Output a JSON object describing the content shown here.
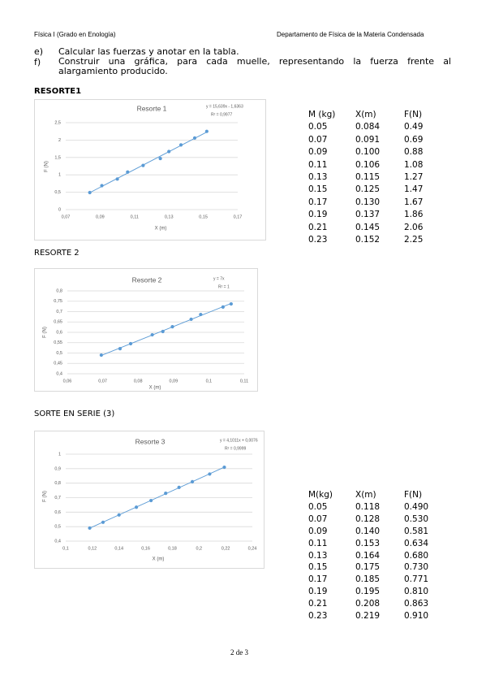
{
  "header": {
    "left": "Física I (Grado en Enología)",
    "right": "Departamento de Física de la Materia Condensada"
  },
  "items": [
    {
      "label": "e)",
      "text": "Calcular las fuerzas y anotar en la tabla."
    },
    {
      "label": "f)",
      "text": "Construir una gráfica, para cada muelle, representando la fuerza frente al alargamiento producido."
    }
  ],
  "sections": [
    "RESORTE1",
    "RESORTE 2",
    "SORTE EN SERIE (3)"
  ],
  "tables": [
    {
      "header": [
        "M (kg)",
        "X(m)",
        "F(N)"
      ],
      "rows": [
        [
          "0.05",
          "0.084",
          "0.49"
        ],
        [
          "0.07",
          "0.091",
          "0.69"
        ],
        [
          "0.09",
          "0.100",
          "0.88"
        ],
        [
          "0.11",
          "0.106",
          "1.08"
        ],
        [
          "0.13",
          "0.115",
          "1.27"
        ],
        [
          "0.15",
          "0.125",
          "1.47"
        ],
        [
          "0.17",
          "0.130",
          "1.67"
        ],
        [
          "0.19",
          "0.137",
          "1.86"
        ],
        [
          "0.21",
          "0.145",
          "2.06"
        ],
        [
          "0.23",
          "0.152",
          "2.25"
        ]
      ]
    },
    {
      "header": [
        "M(kg)",
        "X(m)",
        "F(N)"
      ],
      "rows": [
        [
          "0.05",
          "0.118",
          "0.490"
        ],
        [
          "0.07",
          "0.128",
          "0.530"
        ],
        [
          "0.09",
          "0.140",
          "0.581"
        ],
        [
          "0.11",
          "0.153",
          "0.634"
        ],
        [
          "0.13",
          "0.164",
          "0.680"
        ],
        [
          "0.15",
          "0.175",
          "0.730"
        ],
        [
          "0.17",
          "0.185",
          "0.771"
        ],
        [
          "0.19",
          "0.195",
          "0.810"
        ],
        [
          "0.21",
          "0.208",
          "0.863"
        ],
        [
          "0.23",
          "0.219",
          "0.910"
        ]
      ]
    }
  ],
  "chart_data": [
    {
      "type": "scatter",
      "title": "Resorte 1",
      "equation": "y = 15,639x - 1,6363",
      "r2": "R² = 0,9977",
      "x_label": "X (m)",
      "y_label": "F (N)",
      "trendline": "linear",
      "color": "#5b9bd5",
      "grid": true,
      "x": [
        0.084,
        0.091,
        0.1,
        0.106,
        0.115,
        0.125,
        0.13,
        0.137,
        0.145,
        0.152
      ],
      "values": [
        0.49,
        0.69,
        0.88,
        1.08,
        1.27,
        1.47,
        1.67,
        1.86,
        2.06,
        2.25
      ],
      "xlim": [
        0.07,
        0.17
      ],
      "xticks": [
        {
          "value": 0.07,
          "label": "0,07"
        },
        {
          "value": 0.09,
          "label": "0,09"
        },
        {
          "value": 0.11,
          "label": "0,11"
        },
        {
          "value": 0.13,
          "label": "0,13"
        },
        {
          "value": 0.15,
          "label": "0,15"
        },
        {
          "value": 0.17,
          "label": "0,17"
        }
      ],
      "ylim": [
        0,
        2.5
      ],
      "yticks": [
        0,
        {
          "value": 0.5,
          "label": "0,5"
        },
        1,
        {
          "value": 1.5,
          "label": "1,5"
        },
        2,
        {
          "value": 2.5,
          "label": "2,5"
        }
      ]
    },
    {
      "type": "scatter",
      "title": "Resorte 2",
      "equation": "y = 7x",
      "r2": "R² = 1",
      "x_label": "X (m)",
      "y_label": "F (N)",
      "trendline": "linear",
      "color": "#5b9bd5",
      "grid": true,
      "x": [
        0.0696,
        0.0749,
        0.0779,
        0.084,
        0.087,
        0.0897,
        0.095,
        0.0977,
        0.104,
        0.1063
      ],
      "values": [
        0.49,
        0.521,
        0.545,
        0.588,
        0.604,
        0.627,
        0.663,
        0.686,
        0.722,
        0.737
      ],
      "xlim": [
        0.06,
        0.11
      ],
      "xticks": [
        {
          "value": 0.06,
          "label": "0,06"
        },
        {
          "value": 0.07,
          "label": "0,07"
        },
        {
          "value": 0.08,
          "label": "0,08"
        },
        {
          "value": 0.09,
          "label": "0,09"
        },
        {
          "value": 0.1,
          "label": "0,1"
        },
        {
          "value": 0.11,
          "label": "0,11"
        }
      ],
      "ylim": [
        0.4,
        0.8
      ],
      "yticks": [
        {
          "value": 0.4,
          "label": "0,4"
        },
        {
          "value": 0.45,
          "label": "0,45"
        },
        {
          "value": 0.5,
          "label": "0,5"
        },
        {
          "value": 0.55,
          "label": "0,55"
        },
        {
          "value": 0.6,
          "label": "0,6"
        },
        {
          "value": 0.65,
          "label": "0,65"
        },
        {
          "value": 0.7,
          "label": "0,7"
        },
        {
          "value": 0.75,
          "label": "0,75"
        },
        {
          "value": 0.8,
          "label": "0,8"
        }
      ]
    },
    {
      "type": "scatter",
      "title": "Resorte 3",
      "equation": "y = 4,1011x + 0,0076",
      "r2": "R² = 0,9999",
      "x_label": "X (m)",
      "y_label": "F (N)",
      "trendline": "linear",
      "color": "#5b9bd5",
      "grid": true,
      "x": [
        0.118,
        0.128,
        0.14,
        0.153,
        0.164,
        0.175,
        0.185,
        0.195,
        0.208,
        0.219
      ],
      "values": [
        0.49,
        0.53,
        0.581,
        0.634,
        0.68,
        0.73,
        0.771,
        0.81,
        0.863,
        0.91
      ],
      "xlim": [
        0.1,
        0.24
      ],
      "xticks": [
        {
          "value": 0.1,
          "label": "0,1"
        },
        {
          "value": 0.12,
          "label": "0,12"
        },
        {
          "value": 0.14,
          "label": "0,14"
        },
        {
          "value": 0.16,
          "label": "0,16"
        },
        {
          "value": 0.18,
          "label": "0,18"
        },
        {
          "value": 0.2,
          "label": "0,2"
        },
        {
          "value": 0.22,
          "label": "0,22"
        },
        {
          "value": 0.24,
          "label": "0,24"
        }
      ],
      "ylim": [
        0.4,
        1
      ],
      "yticks": [
        {
          "value": 0.4,
          "label": "0,4"
        },
        {
          "value": 0.5,
          "label": "0,5"
        },
        {
          "value": 0.6,
          "label": "0,6"
        },
        {
          "value": 0.7,
          "label": "0,7"
        },
        {
          "value": 0.8,
          "label": "0,8"
        },
        {
          "value": 0.9,
          "label": "0,9"
        },
        1
      ]
    }
  ],
  "footer": "2 de 3"
}
